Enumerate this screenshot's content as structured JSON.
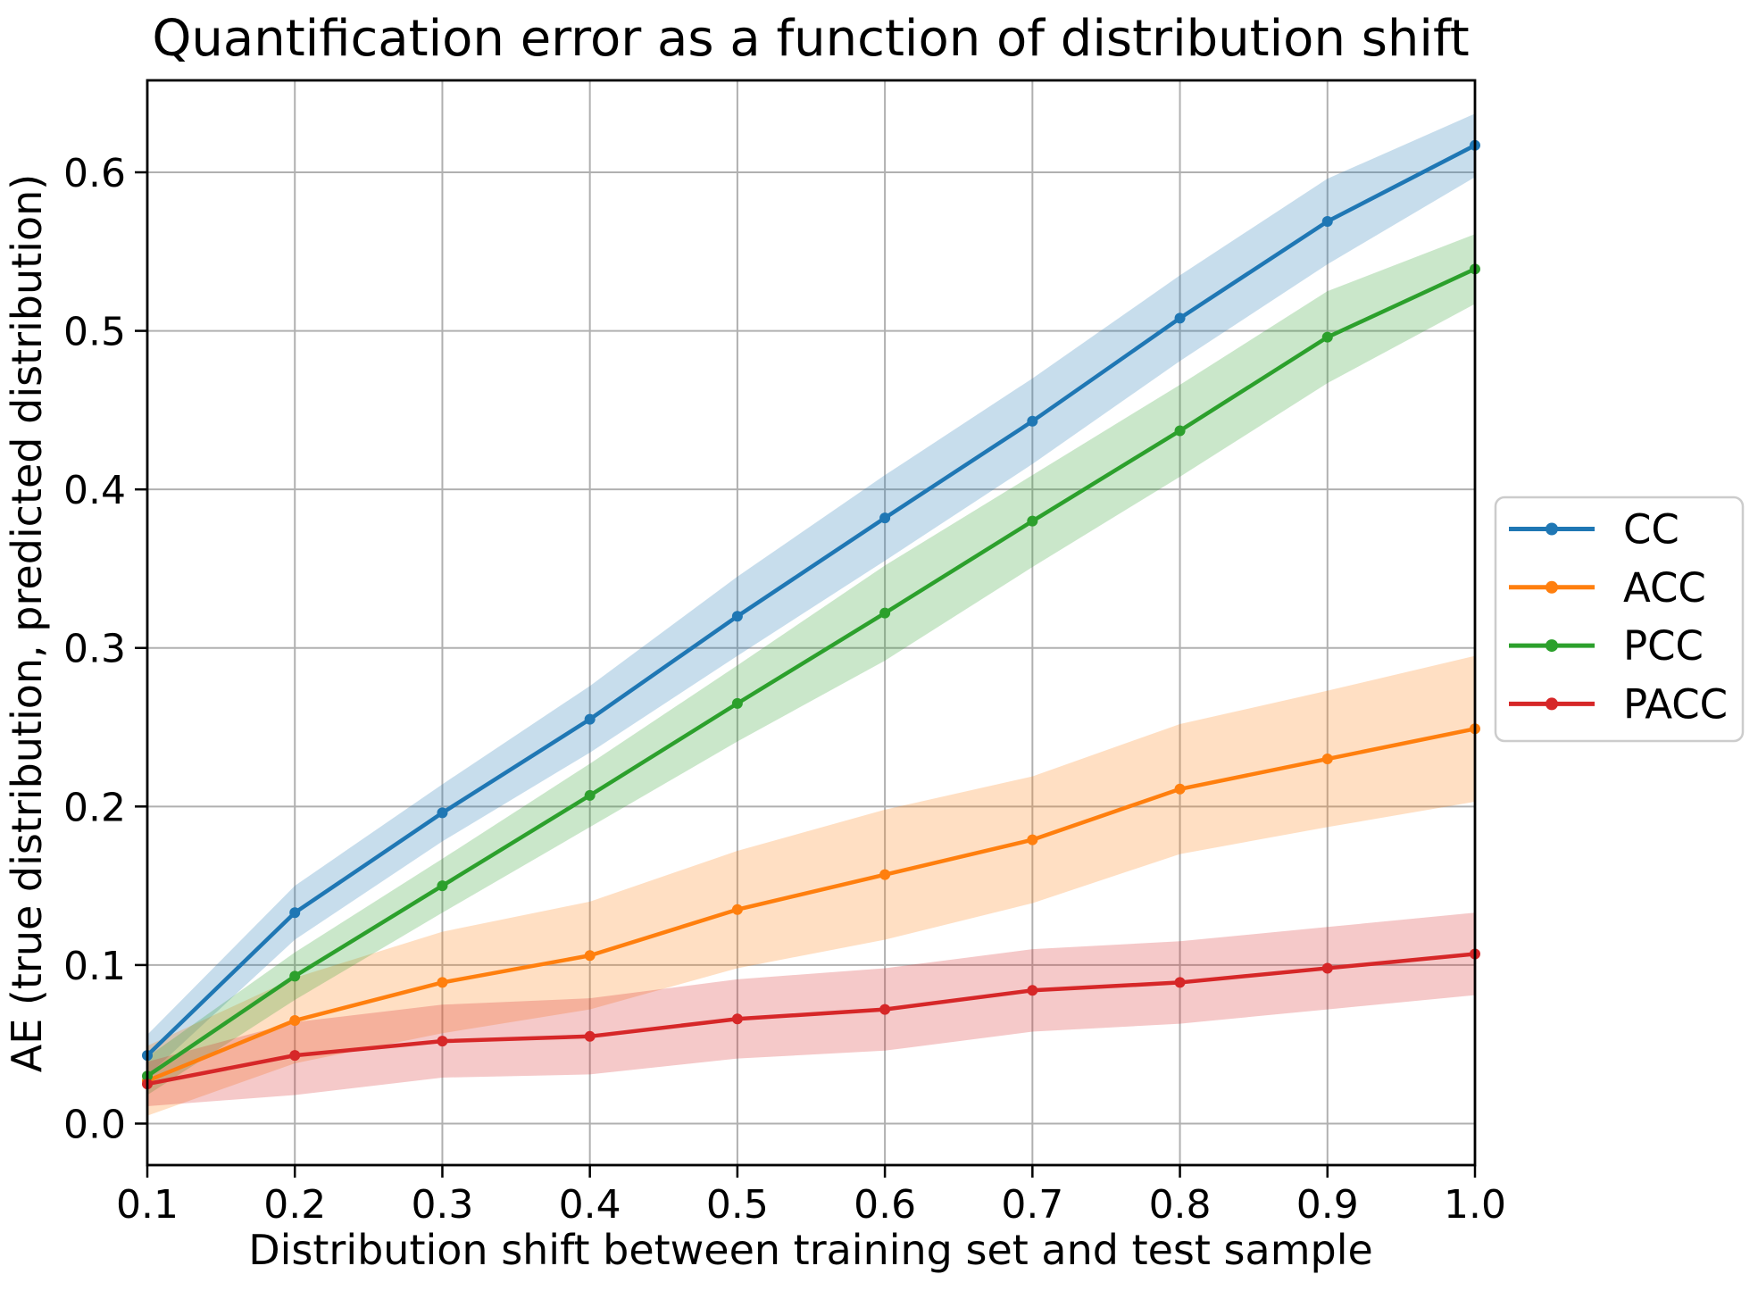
{
  "chart_data": {
    "type": "line",
    "title": "Quantification error as a function of distribution shift",
    "xlabel": "Distribution shift between training set and test sample",
    "ylabel": "AE (true distribution, predicted distribution)",
    "xlim": [
      0.1,
      1.0
    ],
    "ylim": [
      -0.0262,
      0.658
    ],
    "grid": true,
    "grid_color": "#b0b0b0",
    "spine_color": "#000000",
    "background_color": "#ffffff",
    "band_opacity": 0.25,
    "legend_position": "outside-right-center",
    "x": [
      0.1,
      0.2,
      0.3,
      0.4,
      0.5,
      0.6,
      0.7,
      0.8,
      0.9,
      1.0
    ],
    "x_tick_labels": [
      "0.1",
      "0.2",
      "0.3",
      "0.4",
      "0.5",
      "0.6",
      "0.7",
      "0.8",
      "0.9",
      "1.0"
    ],
    "y_ticks": [
      0.0,
      0.1,
      0.2,
      0.3,
      0.4,
      0.5,
      0.6
    ],
    "y_tick_labels": [
      "0.0",
      "0.1",
      "0.2",
      "0.3",
      "0.4",
      "0.5",
      "0.6"
    ],
    "series": [
      {
        "name": "CC",
        "color": "#1f77b4",
        "values": [
          0.043,
          0.133,
          0.196,
          0.255,
          0.32,
          0.382,
          0.443,
          0.508,
          0.569,
          0.617
        ],
        "band_lower": [
          0.03,
          0.116,
          0.178,
          0.234,
          0.295,
          0.355,
          0.416,
          0.481,
          0.542,
          0.597
        ],
        "band_upper": [
          0.056,
          0.15,
          0.214,
          0.276,
          0.345,
          0.409,
          0.47,
          0.535,
          0.596,
          0.637
        ]
      },
      {
        "name": "ACC",
        "color": "#ff7f0e",
        "values": [
          0.027,
          0.065,
          0.089,
          0.106,
          0.135,
          0.157,
          0.179,
          0.211,
          0.23,
          0.249
        ],
        "band_lower": [
          0.005,
          0.038,
          0.057,
          0.072,
          0.098,
          0.116,
          0.139,
          0.17,
          0.187,
          0.203
        ],
        "band_upper": [
          0.049,
          0.092,
          0.121,
          0.14,
          0.172,
          0.198,
          0.219,
          0.252,
          0.273,
          0.295
        ]
      },
      {
        "name": "PCC",
        "color": "#2ca02c",
        "values": [
          0.03,
          0.093,
          0.15,
          0.207,
          0.265,
          0.322,
          0.38,
          0.437,
          0.496,
          0.539
        ],
        "band_lower": [
          0.018,
          0.078,
          0.133,
          0.187,
          0.241,
          0.292,
          0.351,
          0.408,
          0.467,
          0.517
        ],
        "band_upper": [
          0.042,
          0.108,
          0.167,
          0.227,
          0.289,
          0.352,
          0.409,
          0.466,
          0.525,
          0.561
        ]
      },
      {
        "name": "PACC",
        "color": "#d62728",
        "values": [
          0.025,
          0.043,
          0.052,
          0.055,
          0.066,
          0.072,
          0.084,
          0.089,
          0.098,
          0.107
        ],
        "band_lower": [
          0.011,
          0.018,
          0.029,
          0.031,
          0.041,
          0.046,
          0.058,
          0.063,
          0.072,
          0.081
        ],
        "band_upper": [
          0.039,
          0.064,
          0.075,
          0.079,
          0.091,
          0.098,
          0.11,
          0.115,
          0.124,
          0.133
        ]
      }
    ]
  }
}
